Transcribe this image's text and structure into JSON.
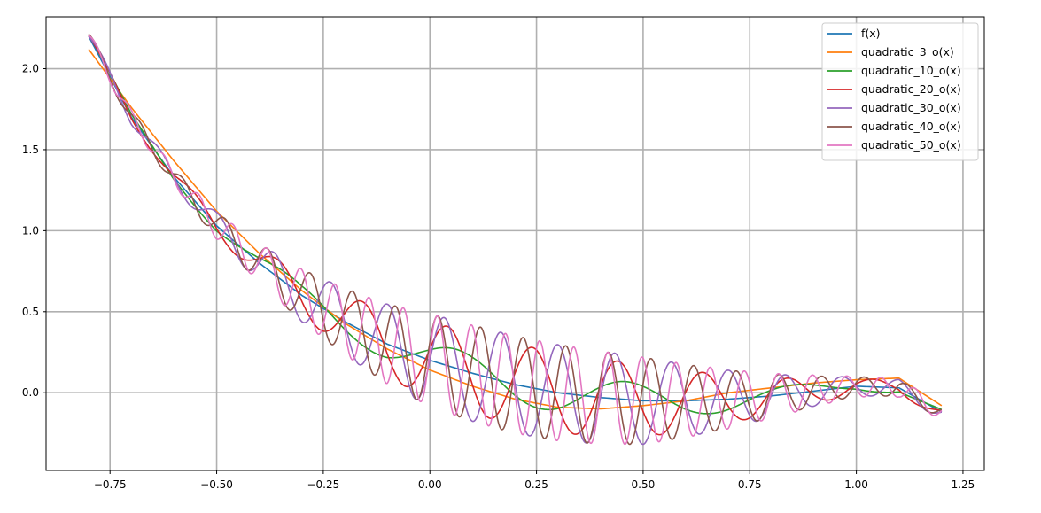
{
  "chart_data": {
    "type": "line",
    "title": "",
    "xlabel": "",
    "ylabel": "",
    "xlim": [
      -0.9,
      1.3
    ],
    "ylim": [
      -0.48,
      2.32
    ],
    "xticks": [
      -0.75,
      -0.5,
      -0.25,
      0.0,
      0.25,
      0.5,
      0.75,
      1.0,
      1.25
    ],
    "xtick_labels": [
      "−0.75",
      "−0.50",
      "−0.25",
      "0.00",
      "0.25",
      "0.50",
      "0.75",
      "1.00",
      "1.25"
    ],
    "yticks": [
      0.0,
      0.5,
      1.0,
      1.5,
      2.0
    ],
    "ytick_labels": [
      "0.0",
      "0.5",
      "1.0",
      "1.5",
      "2.0"
    ],
    "grid": true,
    "legend_position": "top-right",
    "x_range": [
      -0.8,
      1.2
    ],
    "series": [
      {
        "name": "f(x)",
        "color": "#1f77b4",
        "x": [
          -0.8,
          -0.7,
          -0.6,
          -0.5,
          -0.4,
          -0.3,
          -0.2,
          -0.1,
          0.0,
          0.1,
          0.2,
          0.3,
          0.4,
          0.5,
          0.6,
          0.7,
          0.8,
          0.9,
          1.0,
          1.1,
          1.2
        ],
        "y": [
          2.2,
          1.7,
          1.33,
          1.03,
          0.8,
          0.6,
          0.44,
          0.3,
          0.2,
          0.12,
          0.05,
          0.0,
          -0.03,
          -0.05,
          -0.05,
          -0.04,
          -0.02,
          0.01,
          0.04,
          0.03,
          -0.12
        ]
      },
      {
        "name": "quadratic_3_o(x)",
        "color": "#ff7f0e",
        "x": [
          -0.8,
          -0.7,
          -0.6,
          -0.5,
          -0.4,
          -0.3,
          -0.2,
          -0.1,
          0.0,
          0.1,
          0.2,
          0.3,
          0.4,
          0.5,
          0.6,
          0.7,
          0.8,
          0.9,
          1.0,
          1.1,
          1.2
        ],
        "y": [
          2.12,
          1.76,
          1.43,
          1.12,
          0.86,
          0.63,
          0.43,
          0.27,
          0.14,
          0.04,
          -0.04,
          -0.09,
          -0.1,
          -0.08,
          -0.05,
          0.0,
          0.03,
          0.06,
          0.08,
          0.09,
          -0.08
        ]
      },
      {
        "name": "quadratic_10_o(x)",
        "color": "#2ca02c",
        "resolution": 10,
        "amp_left": 0.06,
        "amp_mid": 0.12,
        "amp_right": 0.08,
        "phase": 0.6
      },
      {
        "name": "quadratic_20_o(x)",
        "color": "#d62728",
        "resolution": 20,
        "amp_left": 0.06,
        "amp_mid": 0.25,
        "amp_right": 0.1,
        "phase": 0.3
      },
      {
        "name": "quadratic_30_o(x)",
        "color": "#9467bd",
        "resolution": 30,
        "amp_left": 0.1,
        "amp_mid": 0.3,
        "amp_right": 0.12,
        "phase": 0.0
      },
      {
        "name": "quadratic_40_o(x)",
        "color": "#8c564b",
        "resolution": 40,
        "amp_left": 0.1,
        "amp_mid": 0.3,
        "amp_right": 0.12,
        "phase": 0.4
      },
      {
        "name": "quadratic_50_o(x)",
        "color": "#e377c2",
        "resolution": 50,
        "amp_left": 0.1,
        "amp_mid": 0.3,
        "amp_right": 0.14,
        "phase": 0.2
      }
    ]
  }
}
